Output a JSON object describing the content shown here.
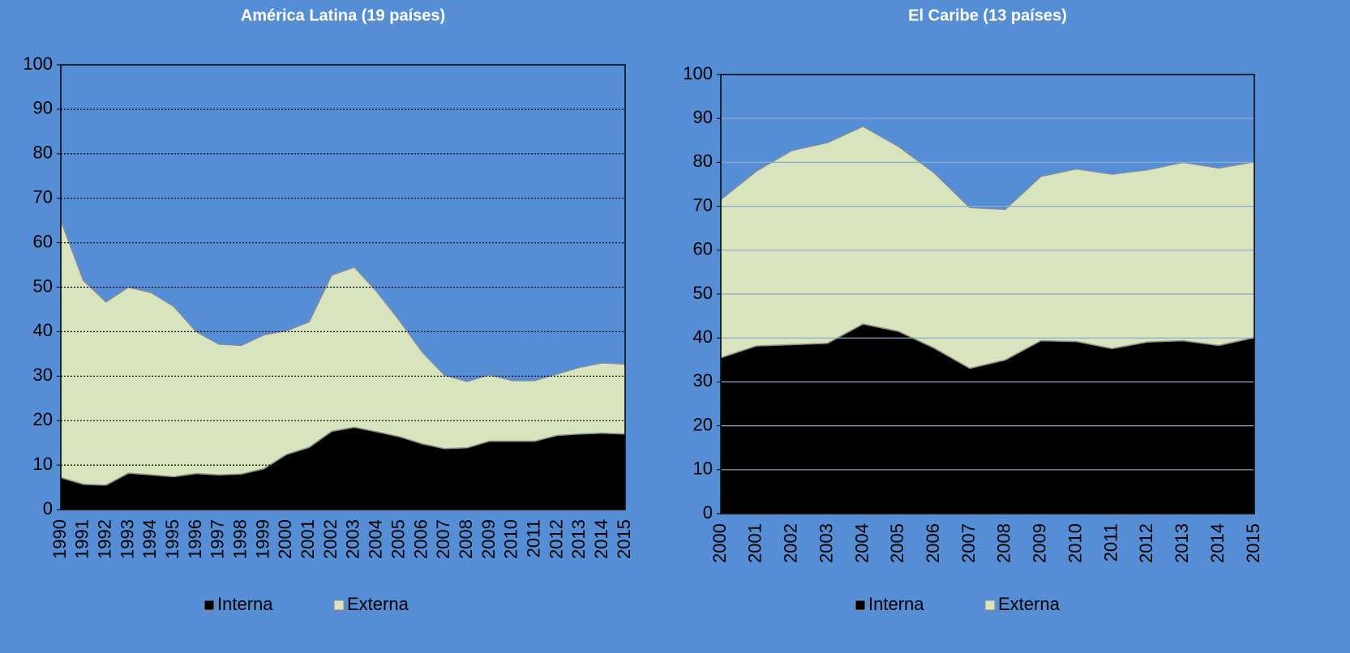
{
  "chart_data": [
    {
      "type": "stacked_area",
      "title": "América Latina (19 países)",
      "categories": [
        "1990",
        "1991",
        "1992",
        "1993",
        "1994",
        "1995",
        "1996",
        "1997",
        "1998",
        "1999",
        "2000",
        "2001",
        "2002",
        "2003",
        "2004",
        "2005",
        "2006",
        "2007",
        "2008",
        "2009",
        "2010",
        "2011",
        "2012",
        "2013",
        "2014",
        "2015"
      ],
      "series": [
        {
          "name": "Interna",
          "color": "#000000",
          "values": [
            7.2,
            5.7,
            5.5,
            8.2,
            7.8,
            7.4,
            8.1,
            7.8,
            8.0,
            9.2,
            12.4,
            14.0,
            17.6,
            18.5,
            17.5,
            16.4,
            14.8,
            13.7,
            13.9,
            15.4,
            15.4,
            15.4,
            16.7,
            17.0,
            17.2,
            17.0
          ]
        },
        {
          "name": "Externa",
          "color": "#d7e4bd",
          "values": [
            57.8,
            45.8,
            41.2,
            41.8,
            41.0,
            38.3,
            31.9,
            29.4,
            28.9,
            30.1,
            27.8,
            28.2,
            35.1,
            36.0,
            31.5,
            26.1,
            20.7,
            16.5,
            14.9,
            14.9,
            13.6,
            13.6,
            13.8,
            15.0,
            15.8,
            15.7
          ]
        }
      ],
      "ylim": [
        0,
        100
      ],
      "yticks": [
        0,
        10,
        20,
        30,
        40,
        50,
        60,
        70,
        80,
        90,
        100
      ],
      "grid": true,
      "grid_style": "dotted",
      "legend": "bottom"
    },
    {
      "type": "stacked_area",
      "title": "El Caribe (13 países)",
      "categories": [
        "2000",
        "2001",
        "2002",
        "2003",
        "2004",
        "2005",
        "2006",
        "2007",
        "2008",
        "2009",
        "2010",
        "2011",
        "2012",
        "2013",
        "2014",
        "2015"
      ],
      "series": [
        {
          "name": "Interna",
          "color": "#000000",
          "values": [
            35.5,
            38.2,
            38.5,
            38.8,
            43.2,
            41.5,
            37.7,
            33.1,
            35.0,
            39.4,
            39.2,
            37.6,
            39.1,
            39.4,
            38.3,
            40.1
          ]
        },
        {
          "name": "Externa",
          "color": "#d7e4bd",
          "values": [
            36.0,
            39.8,
            44.2,
            45.7,
            45.0,
            42.1,
            39.9,
            36.6,
            34.3,
            37.4,
            39.3,
            39.7,
            39.2,
            40.6,
            40.4,
            40.0
          ]
        }
      ],
      "ylim": [
        0,
        100
      ],
      "yticks": [
        0,
        10,
        20,
        30,
        40,
        50,
        60,
        70,
        80,
        90,
        100
      ],
      "grid": true,
      "grid_style": "solid",
      "legend": "bottom"
    }
  ]
}
